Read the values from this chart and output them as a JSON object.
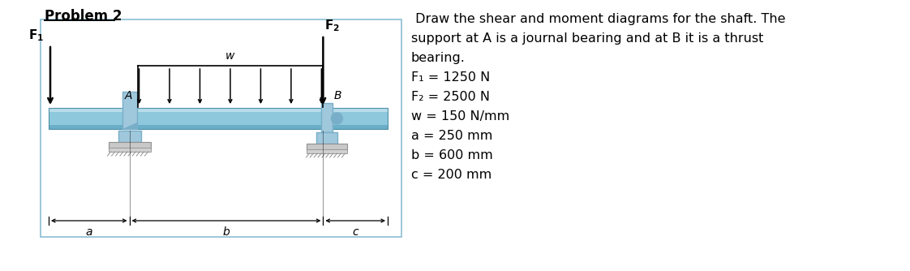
{
  "title": "Problem 2",
  "desc1": " Draw the shear and moment diagrams for the shaft. The",
  "desc2": "support at A is a journal bearing and at B it is a thrust",
  "desc3": "bearing.",
  "p_F1": "F₁ = 1250 N",
  "p_F2": "F₂ = 2500 N",
  "p_w": "w = 150 N/mm",
  "p_a": "a = 250 mm",
  "p_b": "b = 600 mm",
  "p_c": "c = 200 mm",
  "bg": "#ffffff",
  "box_edge": "#8bbdd4",
  "shaft_light": "#b8dcea",
  "shaft_mid": "#8ec8dc",
  "shaft_dark": "#6aaec8",
  "bearing_light": "#a0c8dc",
  "bearing_dark": "#78aec8",
  "support_fill": "#c8c8c8",
  "support_edge": "#909090",
  "ground_fill": "#d0d0d0",
  "ground_edge": "#909090"
}
